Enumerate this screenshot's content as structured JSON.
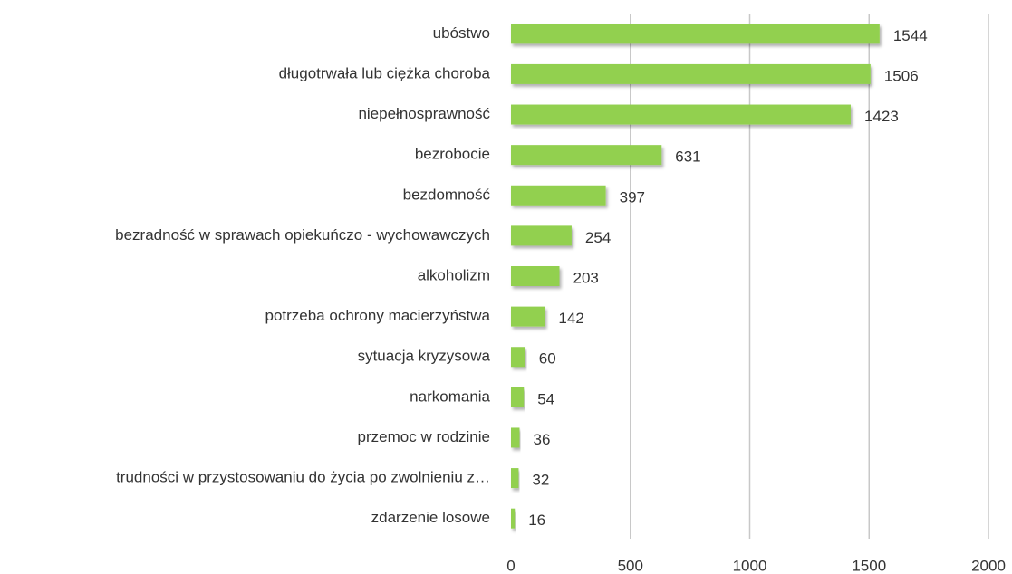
{
  "chart_data": {
    "type": "bar",
    "orientation": "horizontal",
    "categories": [
      "ubóstwo",
      "długotrwała lub ciężka choroba",
      "niepełnosprawność",
      "bezrobocie",
      "bezdomność",
      "bezradność w sprawach opiekuńczo - wychowawczych",
      "alkoholizm",
      "potrzeba ochrony macierzyństwa",
      "sytuacja kryzysowa",
      "narkomania",
      "przemoc w rodzinie",
      "trudności w przystosowaniu do życia po zwolnieniu z…",
      "zdarzenie losowe"
    ],
    "values": [
      1544,
      1506,
      1423,
      631,
      397,
      254,
      203,
      142,
      60,
      54,
      36,
      32,
      16
    ],
    "color": "#92d050",
    "xlim": [
      0,
      2000
    ],
    "xticks": [
      0,
      500,
      1000,
      1500,
      2000
    ],
    "grid": true
  }
}
